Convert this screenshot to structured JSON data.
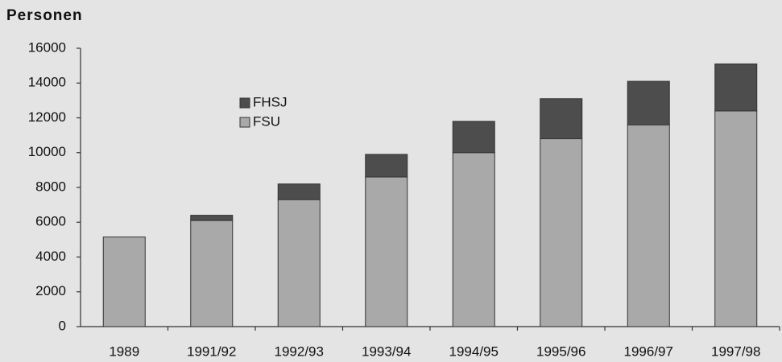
{
  "chart_data": {
    "type": "stacked-bar",
    "title": "Personen",
    "categories": [
      "1989",
      "1991/92",
      "1992/93",
      "1993/94",
      "1994/95",
      "1995/96",
      "1996/97",
      "1997/98"
    ],
    "series": [
      {
        "name": "FSU",
        "color": "#a9a9a9",
        "values": [
          5150,
          6100,
          7300,
          8600,
          10000,
          10800,
          11600,
          12400
        ]
      },
      {
        "name": "FHSJ",
        "color": "#4d4d4d",
        "values": [
          0,
          300,
          900,
          1300,
          1800,
          2300,
          2500,
          2700
        ]
      }
    ],
    "ylim": [
      0,
      16000
    ],
    "yticks": [
      0,
      2000,
      4000,
      6000,
      8000,
      10000,
      12000,
      14000,
      16000
    ],
    "grid": false
  }
}
